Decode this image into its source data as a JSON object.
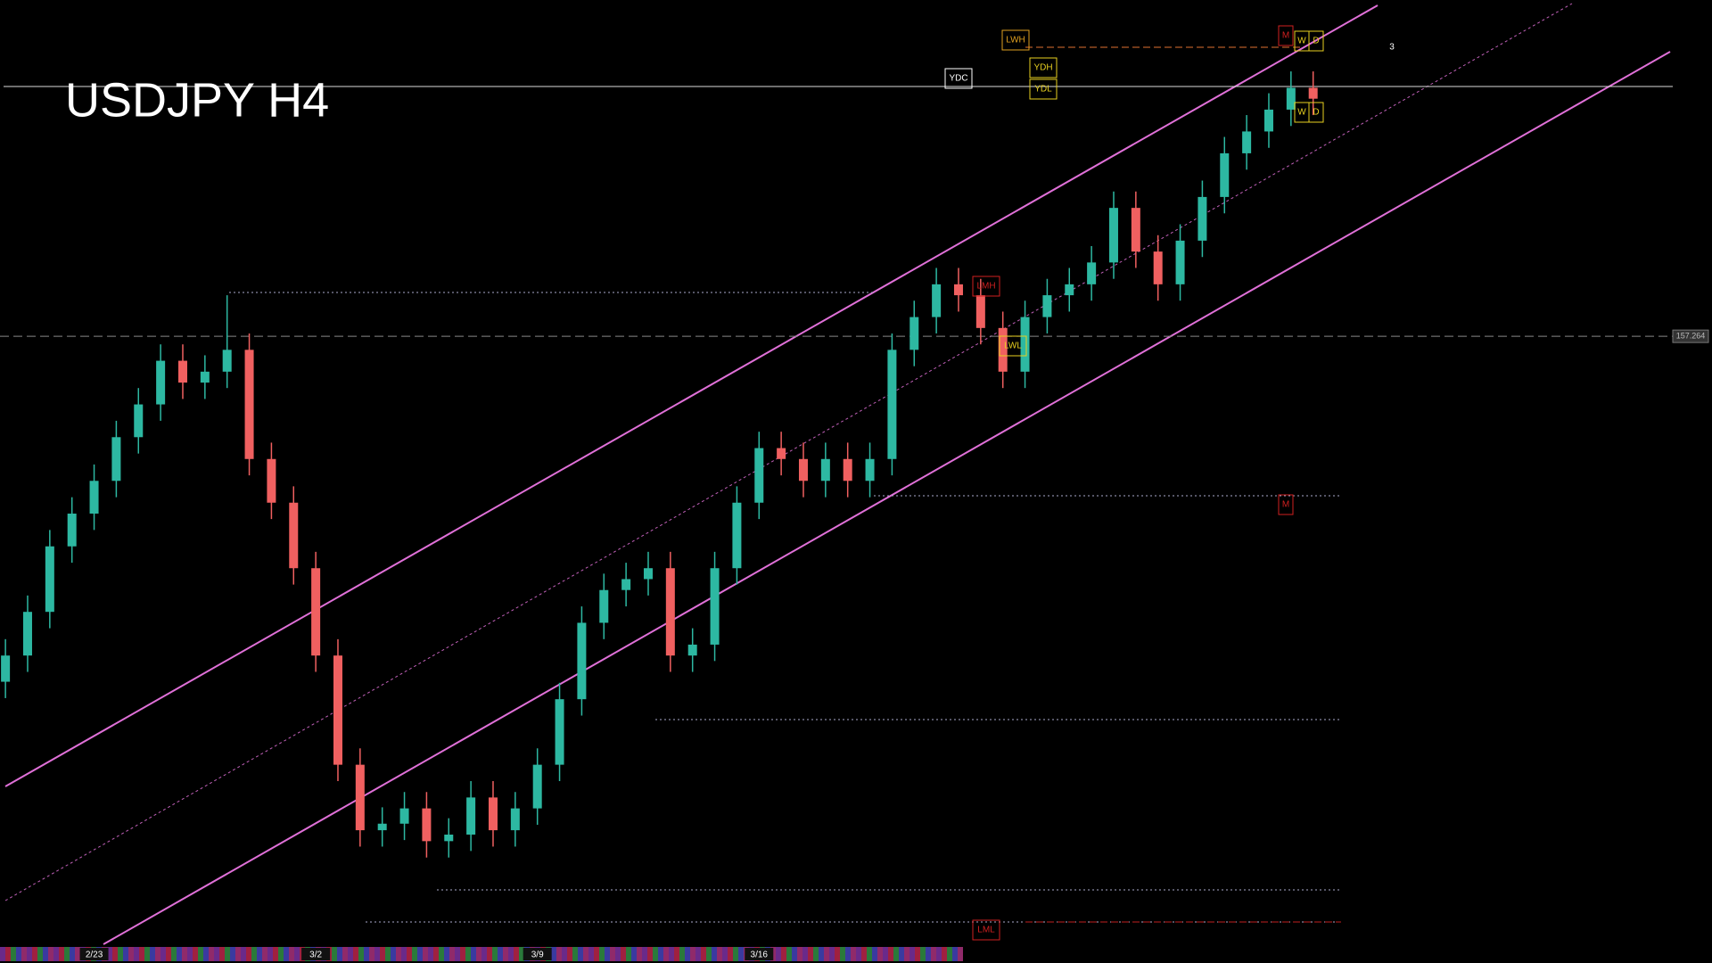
{
  "chart_data": {
    "type": "candlestick",
    "title": "USDJPY H4",
    "categories": [
      null,
      null,
      null,
      null,
      "2/23",
      null,
      null,
      null,
      null,
      null,
      null,
      null,
      null,
      null,
      "3/2",
      null,
      null,
      null,
      null,
      null,
      null,
      null,
      null,
      null,
      "3/9",
      null,
      null,
      null,
      null,
      null,
      null,
      null,
      null,
      null,
      "3/16",
      null,
      null,
      null,
      null,
      null,
      null,
      null,
      null,
      null,
      null,
      null,
      null,
      null,
      null,
      null,
      null,
      null,
      null,
      null,
      null,
      null,
      null,
      null,
      null,
      null
    ],
    "open": [
      154.1,
      154.34,
      154.74,
      155.34,
      155.64,
      155.94,
      156.34,
      156.64,
      157.04,
      156.84,
      156.94,
      157.14,
      156.14,
      155.74,
      155.14,
      154.34,
      153.34,
      152.74,
      152.8,
      152.94,
      152.64,
      152.7,
      153.04,
      152.74,
      152.94,
      153.34,
      153.94,
      154.64,
      154.94,
      155.04,
      155.14,
      154.34,
      154.44,
      155.14,
      155.74,
      156.24,
      156.14,
      155.94,
      156.14,
      155.94,
      156.14,
      157.14,
      157.44,
      157.74,
      157.64,
      157.34,
      156.94,
      157.44,
      157.64,
      157.74,
      157.94,
      158.44,
      158.04,
      157.74,
      158.14,
      158.54,
      158.94,
      159.14,
      159.34,
      159.54
    ],
    "high": [
      154.49,
      154.89,
      155.49,
      155.79,
      156.09,
      156.49,
      156.79,
      157.19,
      157.19,
      157.09,
      157.64,
      157.29,
      156.29,
      155.89,
      155.29,
      154.49,
      153.49,
      152.95,
      153.09,
      153.09,
      152.85,
      153.19,
      153.19,
      153.09,
      153.49,
      154.09,
      154.79,
      155.09,
      155.19,
      155.29,
      155.29,
      154.59,
      155.29,
      155.89,
      156.39,
      156.39,
      156.29,
      156.29,
      156.29,
      156.29,
      157.29,
      157.59,
      157.89,
      157.89,
      157.79,
      157.49,
      157.59,
      157.79,
      157.89,
      158.09,
      158.59,
      158.59,
      158.19,
      158.29,
      158.69,
      159.09,
      159.29,
      159.49,
      159.69,
      159.69
    ],
    "low": [
      153.95,
      154.19,
      154.59,
      155.19,
      155.49,
      155.79,
      156.19,
      156.49,
      156.69,
      156.69,
      156.79,
      155.99,
      155.59,
      154.99,
      154.19,
      153.19,
      152.59,
      152.59,
      152.65,
      152.49,
      152.49,
      152.55,
      152.59,
      152.59,
      152.79,
      153.19,
      153.79,
      154.49,
      154.79,
      154.89,
      154.19,
      154.19,
      154.29,
      154.99,
      155.59,
      155.99,
      155.79,
      155.79,
      155.79,
      155.79,
      155.99,
      156.99,
      157.29,
      157.49,
      157.19,
      156.79,
      156.79,
      157.29,
      157.49,
      157.59,
      157.79,
      157.89,
      157.59,
      157.59,
      157.99,
      158.39,
      158.79,
      158.99,
      159.19,
      159.29
    ],
    "close": [
      154.34,
      154.74,
      155.34,
      155.64,
      155.94,
      156.34,
      156.64,
      157.04,
      156.84,
      156.94,
      157.14,
      156.14,
      155.74,
      155.14,
      154.34,
      153.34,
      152.74,
      152.8,
      152.94,
      152.64,
      152.7,
      153.04,
      152.74,
      152.94,
      153.34,
      153.94,
      154.64,
      154.94,
      155.04,
      155.14,
      154.34,
      154.44,
      155.14,
      155.74,
      156.24,
      156.14,
      155.94,
      156.14,
      155.94,
      156.14,
      157.14,
      157.44,
      157.74,
      157.64,
      157.34,
      156.94,
      157.44,
      157.64,
      157.74,
      157.94,
      158.44,
      158.04,
      157.74,
      158.14,
      158.54,
      158.94,
      159.14,
      159.34,
      159.54,
      159.44
    ],
    "up_color": "#2db8a2",
    "down_color": "#f06060",
    "ylim": [
      151.524,
      160.344
    ],
    "yticks": [
      157.264
    ],
    "grid": true,
    "annotations": [
      "LWH",
      "YDC",
      "YDH",
      "YDL",
      "M",
      "W",
      "D",
      "W",
      "D",
      "LMH",
      "LWL",
      "M",
      "LML",
      "3"
    ]
  }
}
